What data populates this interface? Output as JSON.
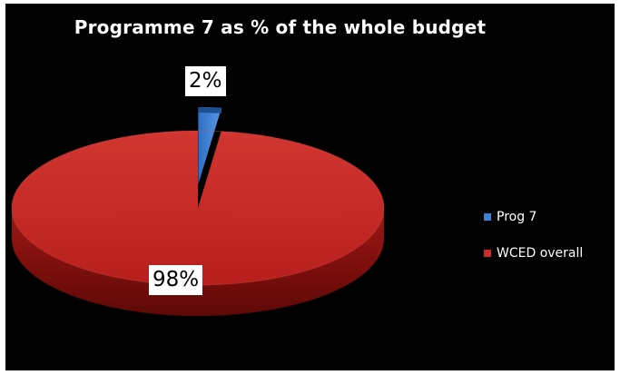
{
  "chart_data": {
    "type": "pie",
    "title": "Programme 7 as % of the whole budget",
    "categories": [
      "Prog 7",
      "WCED overall"
    ],
    "values": [
      2,
      98
    ],
    "labels": [
      "2%",
      "98%"
    ],
    "colors": [
      "#3d7fd6",
      "#cf2a26"
    ],
    "legend_position": "right",
    "style": "3d",
    "background": "#000000"
  }
}
